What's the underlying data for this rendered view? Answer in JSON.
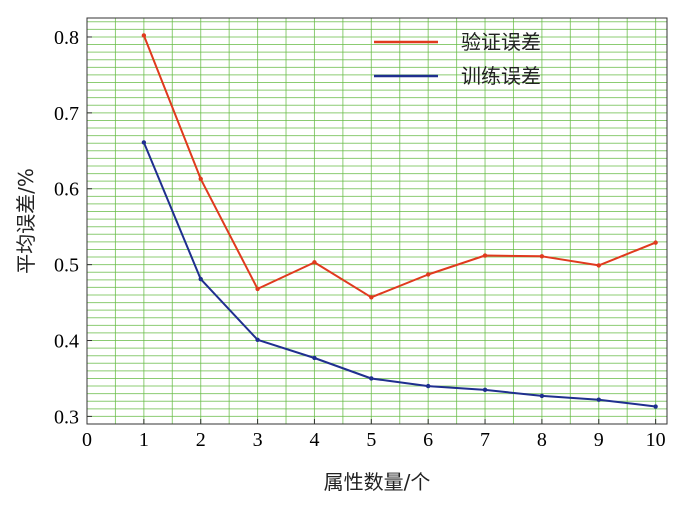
{
  "chart_data": {
    "type": "line",
    "title": "",
    "xlabel": "属性数量/个",
    "ylabel": "平均误差/%",
    "x": [
      1,
      2,
      3,
      4,
      5,
      6,
      7,
      8,
      9,
      10
    ],
    "xlim": [
      0,
      10.2
    ],
    "ylim": [
      0.29,
      0.825
    ],
    "xticks": [
      0,
      1,
      2,
      3,
      4,
      5,
      6,
      7,
      8,
      9,
      10
    ],
    "yticks": [
      0.3,
      0.4,
      0.5,
      0.6,
      0.7,
      0.8
    ],
    "grid": true,
    "grid_color": "#66bb44",
    "legend_position": "top-right",
    "series": [
      {
        "name": "验证误差",
        "color": "#e03a1e",
        "values": [
          0.802,
          0.613,
          0.468,
          0.503,
          0.457,
          0.487,
          0.512,
          0.511,
          0.499,
          0.529
        ]
      },
      {
        "name": "训练误差",
        "color": "#1f2f8f",
        "values": [
          0.661,
          0.481,
          0.401,
          0.377,
          0.35,
          0.34,
          0.335,
          0.327,
          0.322,
          0.313
        ]
      }
    ]
  }
}
